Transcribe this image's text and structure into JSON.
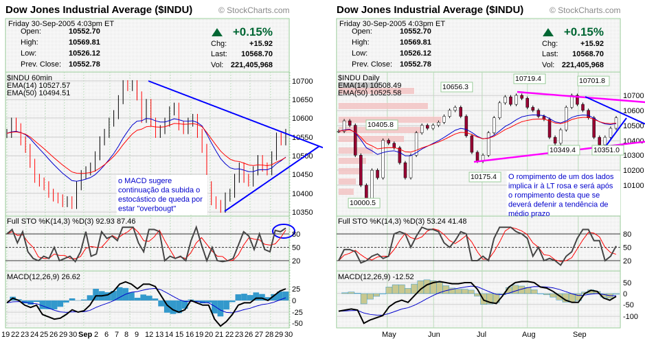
{
  "panels": [
    {
      "id": "left",
      "title": "Dow Jones Industrial Average ($INDU)",
      "copyright": "© StockCharts.com",
      "date": "Friday  30-Sep-2005  4:03pm ET",
      "open_label": "Open:",
      "open": "10552.70",
      "high_label": "High:",
      "high": "10569.81",
      "low_label": "Low:",
      "low": "10526.12",
      "prev_label": "Prev. Close:",
      "prev": "10552.78",
      "pct": "+0.15%",
      "chg_label": "Chg:",
      "chg": "+15.92",
      "last_label": "Last:",
      "last": "10568.70",
      "vol_label": "Vol:",
      "vol": "221,405,968",
      "price_title": "$INDU 60min",
      "ema14": "EMA(14) 10527.57",
      "ema50": "EMA(50) 10494.51",
      "sto_title": "Full STO %K(14,3) %D(3)  92.93  87.46",
      "macd_title": "MACD(12,26,9)  26.62",
      "note": [
        "o MACD sugere",
        "continuação da subida o",
        "estocástico de queda por",
        "estar \"overbougt\""
      ],
      "price_ticks": [
        "10700",
        "10650",
        "10600",
        "10550",
        "10500",
        "10450",
        "10400",
        "10350"
      ],
      "sto_ticks": [
        "80",
        "50",
        "20"
      ],
      "macd_ticks": [
        "25",
        "0",
        "-25",
        "-50"
      ],
      "x_labels": [
        "19",
        "22",
        "23",
        "24",
        "25",
        "26",
        "29",
        "30",
        "Sep",
        "2",
        "6",
        "7",
        "8",
        "9",
        "12",
        "13",
        "14",
        "15",
        "16",
        "19",
        "20",
        "21",
        "22",
        "23",
        "26",
        "27",
        "28",
        "29",
        "30"
      ]
    },
    {
      "id": "right",
      "title": "Dow Jones Industrial Average ($INDU)",
      "copyright": "© StockCharts.com",
      "date": "Friday  30-Sep-2005  4:03pm ET",
      "open_label": "Open:",
      "open": "10552.70",
      "high_label": "High:",
      "high": "10569.81",
      "low_label": "Low:",
      "low": "10526.12",
      "prev_label": "Prev. Close:",
      "prev": "10552.78",
      "pct": "+0.15%",
      "chg_label": "Chg:",
      "chg": "+15.92",
      "last_label": "Last:",
      "last": "10568.70",
      "vol_label": "Vol:",
      "vol": "221,405,968",
      "price_title": "$INDU Daily",
      "ema14": "EMA(14) 10508.49",
      "ema50": "EMA(50) 10525.58",
      "sto_title": "Full STO %K(14,3) %D(3)  53.24  41.48",
      "macd_title": "MACD(12,26,9)  -12.52",
      "note": [
        "O rompimento de um dos lados",
        "implica ir à LT rosa e será após",
        "o rompimento desta que se",
        "deverá defenir a tendência de",
        "médio prazo"
      ],
      "price_ticks": [
        "10700",
        "10600",
        "10500",
        "10400",
        "10300",
        "10200",
        "10100"
      ],
      "sto_ticks": [
        "80",
        "50",
        "20"
      ],
      "macd_ticks": [
        "50",
        "0",
        "-50",
        "-100"
      ],
      "x_labels": [
        "May",
        "Jun",
        "Jul",
        "Aug",
        "Sep"
      ],
      "annotations": [
        "10656.3",
        "10719.4",
        "10701.8",
        "10405.8",
        "10349.4",
        "10351.0",
        "10175.4",
        "10000.5"
      ]
    }
  ],
  "colors": {
    "up": "#006633",
    "ema14": "#0000cc",
    "ema50": "#ff0000",
    "trend": "#0000ff",
    "pink": "#ff00ff",
    "candle_down": "#990033"
  },
  "chart_data": [
    {
      "type": "line",
      "title": "$INDU 60min",
      "ylim": [
        10340,
        10725
      ],
      "closes": [
        10560,
        10590,
        10575,
        10540,
        10520,
        10480,
        10440,
        10430,
        10420,
        10400,
        10390,
        10385,
        10375,
        10380,
        10370,
        10420,
        10450,
        10460,
        10470,
        10500,
        10540,
        10560,
        10590,
        10610,
        10650,
        10690,
        10685,
        10690,
        10660,
        10600,
        10640,
        10590,
        10560,
        10570,
        10590,
        10620,
        10630,
        10580,
        10570,
        10590,
        10600,
        10560,
        10520,
        10420,
        10380,
        10370,
        10360,
        10390,
        10400,
        10440,
        10470,
        10440,
        10430,
        10460,
        10490,
        10470,
        10460,
        10500,
        10550,
        10540,
        10560
      ],
      "stoch_k": [
        80,
        90,
        60,
        85,
        40,
        25,
        20,
        30,
        25,
        50,
        20,
        25,
        30,
        18,
        40,
        85,
        30,
        35,
        85,
        70,
        75,
        65,
        95,
        95,
        95,
        60,
        40,
        90,
        90,
        85,
        20,
        30,
        25,
        30,
        20,
        65,
        95,
        55,
        20,
        50,
        20,
        18,
        20,
        25,
        55,
        85,
        75,
        45,
        80,
        45,
        40,
        88,
        85,
        93
      ],
      "macd": [
        -5,
        5,
        0,
        -10,
        -15,
        -10,
        -30,
        -35,
        -40,
        -38,
        -30,
        -20,
        -25,
        -22,
        -10,
        10,
        10,
        12,
        20,
        35,
        40,
        35,
        25,
        35,
        35,
        30,
        10,
        -10,
        -20,
        -25,
        -20,
        0,
        -5,
        -10,
        -10,
        -40,
        -55,
        -45,
        -30,
        -10,
        -5,
        -5,
        5,
        5,
        0,
        10,
        20,
        25
      ]
    },
    {
      "type": "candlestick",
      "title": "$INDU Daily",
      "ylim": [
        9895,
        10856
      ],
      "closes": [
        10460,
        10530,
        10500,
        10300,
        10100,
        10000,
        10200,
        10150,
        10400,
        10380,
        10350,
        10250,
        10150,
        10300,
        10450,
        10500,
        10480,
        10500,
        10520,
        10560,
        10600,
        10620,
        10560,
        10430,
        10320,
        10260,
        10300,
        10450,
        10550,
        10650,
        10690,
        10640,
        10700,
        10680,
        10620,
        10600,
        10560,
        10540,
        10420,
        10380,
        10470,
        10620,
        10700,
        10640,
        10600,
        10550,
        10420,
        10370,
        10420,
        10480,
        10550
      ],
      "stoch_k": [
        20,
        45,
        45,
        40,
        15,
        20,
        30,
        35,
        25,
        30,
        80,
        85,
        80,
        50,
        75,
        95,
        90,
        90,
        85,
        60,
        50,
        65,
        85,
        80,
        20,
        20,
        30,
        20,
        70,
        95,
        95,
        95,
        85,
        80,
        70,
        30,
        50,
        20,
        25,
        20,
        10,
        30,
        40,
        70,
        90,
        90,
        65,
        65,
        20,
        30,
        53
      ],
      "macd": [
        -80,
        -75,
        -70,
        -75,
        -135,
        -120,
        -110,
        -100,
        -60,
        -40,
        -30,
        -40,
        -10,
        20,
        40,
        50,
        55,
        50,
        45,
        45,
        50,
        50,
        20,
        -30,
        -40,
        -45,
        -10,
        30,
        50,
        55,
        55,
        50,
        30,
        25,
        10,
        -10,
        -30,
        -40,
        -40,
        0,
        15,
        10,
        -20,
        -30,
        -13
      ]
    }
  ]
}
